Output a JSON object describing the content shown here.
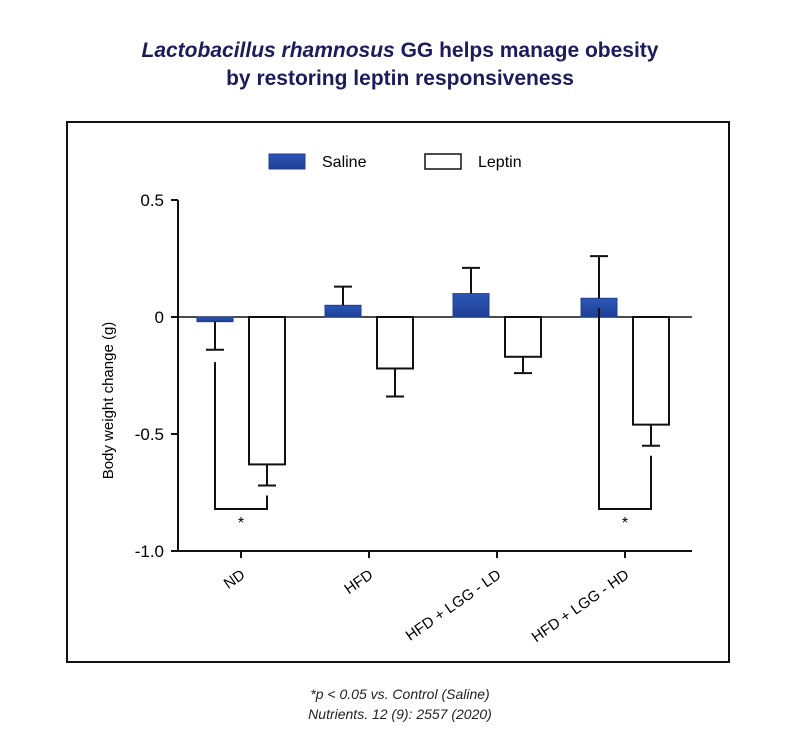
{
  "title": {
    "italic_part": "Lactobacillus rhamnosus",
    "line1_rest": " GG helps manage obesity",
    "line2": "by restoring leptin responsiveness"
  },
  "footnotes": {
    "line1": "*p < 0.05 vs. Control (Saline)",
    "line2": "Nutrients. 12 (9): 2557 (2020)"
  },
  "colors": {
    "saline": "#1f3f93",
    "leptin": "#ffffff",
    "title": "#1b1c5c"
  },
  "chart_data": {
    "type": "bar",
    "categories": [
      "ND",
      "HFD",
      "HFD + LGG - LD",
      "HFD + LGG - HD"
    ],
    "series": [
      {
        "name": "Saline",
        "values": [
          -0.02,
          0.05,
          0.1,
          0.08
        ],
        "error": [
          0.12,
          0.08,
          0.11,
          0.18
        ]
      },
      {
        "name": "Leptin",
        "values": [
          -0.63,
          -0.22,
          -0.17,
          -0.46
        ],
        "error": [
          0.09,
          0.12,
          0.07,
          0.09
        ]
      }
    ],
    "ylabel": "Body weight change (g)",
    "xlabel": "",
    "ylim": [
      -1.0,
      0.5
    ],
    "yticks": [
      "0.5",
      "0",
      "-0.5",
      "-1.0"
    ],
    "significance": [
      {
        "category": "ND",
        "label": "*"
      },
      {
        "category": "HFD + LGG - HD",
        "label": "*"
      }
    ],
    "legend_position": "top-center"
  }
}
